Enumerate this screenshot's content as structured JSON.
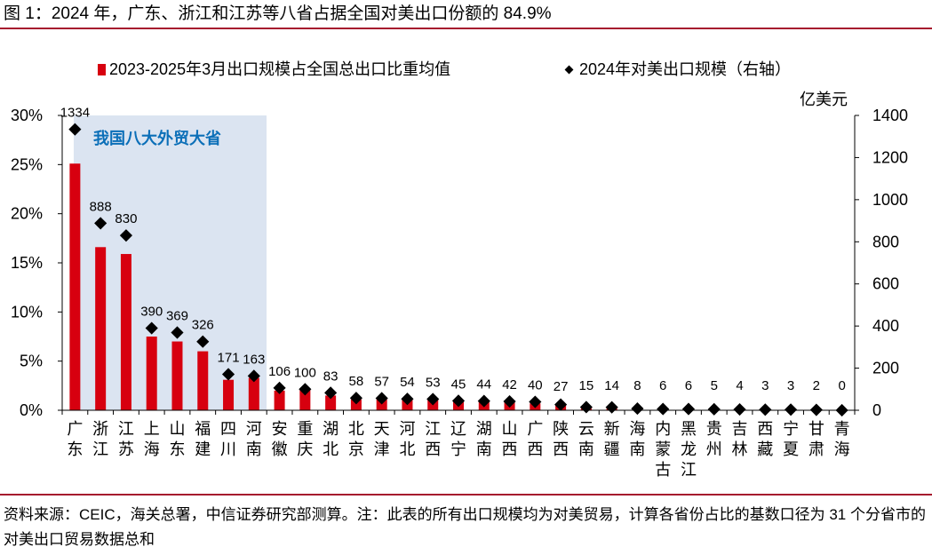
{
  "title": "图 1：2024 年，广东、浙江和江苏等八省占据全国对美出口份额的 84.9%",
  "legend": {
    "bar_label": "2023-2025年3月出口规模占全国总出口比重均值",
    "diamond_label": "2024年对美出口规模（右轴）"
  },
  "highlight": {
    "label": "我国八大外贸大省",
    "color": "#dbe4f1",
    "text_color": "#0b6fb8"
  },
  "colors": {
    "bar": "#d7000f",
    "diamond": "#000000",
    "rule": "#a6192e"
  },
  "right_axis_unit": "亿美元",
  "left_ticks": [
    "0%",
    "5%",
    "10%",
    "15%",
    "20%",
    "25%",
    "30%"
  ],
  "right_ticks": [
    "0",
    "200",
    "400",
    "600",
    "800",
    "1000",
    "1200",
    "1400"
  ],
  "source": "资料来源：CEIC，海关总署，中信证券研究部测算。注：此表的所有出口规模均为对美贸易，计算各省份占比的基数口径为 31 个分省市的对美出口贸易数据总和",
  "chart_data": {
    "type": "bar",
    "title": "2024 年，广东、浙江和江苏等八省占据全国对美出口份额的 84.9%",
    "categories": [
      "广东",
      "浙江",
      "江苏",
      "上海",
      "山东",
      "福建",
      "四川",
      "河南",
      "安徽",
      "重庆",
      "湖北",
      "北京",
      "天津",
      "河北",
      "江西",
      "辽宁",
      "湖南",
      "山西",
      "广西",
      "陕西",
      "云南",
      "新疆",
      "海南",
      "内蒙古",
      "黑龙江",
      "贵州",
      "吉林",
      "西藏",
      "宁夏",
      "甘肃",
      "青海"
    ],
    "series": [
      {
        "name": "2023-2025年3月出口规模占全国总出口比重均值",
        "type": "bar",
        "axis": "left",
        "unit": "%",
        "values": [
          25.1,
          16.6,
          15.9,
          7.5,
          7.0,
          6.0,
          3.1,
          3.3,
          2.0,
          2.1,
          1.5,
          1.1,
          1.1,
          1.1,
          1.1,
          0.9,
          0.9,
          0.9,
          0.7,
          0.5,
          0.2,
          0.2,
          0.05,
          0.05,
          0.05,
          0.05,
          0.05,
          0.02,
          0.02,
          0.02,
          0.01
        ]
      },
      {
        "name": "2024年对美出口规模（右轴）",
        "type": "scatter",
        "axis": "right",
        "unit": "亿美元",
        "values": [
          1334,
          888,
          830,
          390,
          369,
          326,
          171,
          163,
          106,
          100,
          83,
          58,
          57,
          54,
          53,
          45,
          44,
          42,
          40,
          27,
          15,
          14,
          8,
          6,
          6,
          5,
          4,
          3,
          3,
          2,
          0
        ]
      }
    ],
    "xlabel": "",
    "ylabel": "",
    "ylabel_right": "亿美元",
    "ylim": [
      0,
      30
    ],
    "ylim_right": [
      0,
      1400
    ],
    "yticks": [
      "0%",
      "5%",
      "10%",
      "15%",
      "20%",
      "25%",
      "30%"
    ],
    "yticks_right": [
      0,
      200,
      400,
      600,
      800,
      1000,
      1200,
      1400
    ],
    "annotations": [
      {
        "text": "我国八大外贸大省",
        "span": [
          "广东",
          "河南"
        ]
      }
    ],
    "legend_position": "top",
    "grid": false
  }
}
